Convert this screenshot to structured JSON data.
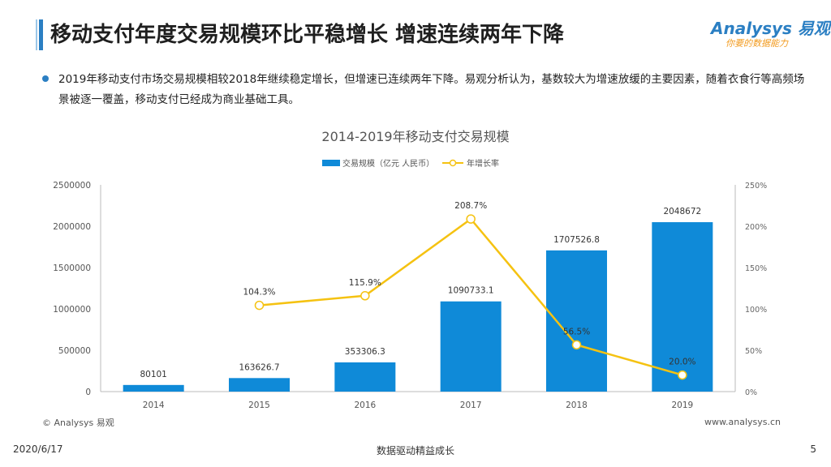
{
  "header": {
    "title": "移动支付年度交易规模环比平稳增长 增速连续两年下降",
    "logo_main": "Analysys 易观",
    "logo_sub": "你要的数据能力"
  },
  "summary": {
    "text": "2019年移动支付市场交易规模相较2018年继续稳定增长，但增速已连续两年下降。易观分析认为，基数较大为增速放缓的主要因素，随着衣食行等高频场景被逐一覆盖，移动支付已经成为商业基础工具。"
  },
  "chart_data": {
    "type": "bar",
    "title": "2014-2019年移动支付交易规模",
    "categories": [
      "2014",
      "2015",
      "2016",
      "2017",
      "2018",
      "2019"
    ],
    "series": [
      {
        "name": "交易规模（亿元 人民币）",
        "type": "bar",
        "axis": "left",
        "values": [
          80101,
          163626.7,
          353306.3,
          1090733.1,
          1707526.8,
          2048672
        ],
        "labels": [
          "80101",
          "163626.7",
          "353306.3",
          "1090733.1",
          "1707526.8",
          "2048672"
        ],
        "color": "#0f8ad8"
      },
      {
        "name": "年增长率",
        "type": "line",
        "axis": "right",
        "values": [
          null,
          104.3,
          115.9,
          208.7,
          56.5,
          20.0
        ],
        "labels": [
          "",
          "104.3%",
          "115.9%",
          "208.7%",
          "56.5%",
          "20.0%"
        ],
        "color": "#f5c211"
      }
    ],
    "y_left": {
      "min": 0,
      "max": 2500000,
      "ticks": [
        "0",
        "500000",
        "1000000",
        "1500000",
        "2000000",
        "2500000"
      ]
    },
    "y_right": {
      "min": 0,
      "max": 250,
      "ticks": [
        "0%",
        "50%",
        "100%",
        "150%",
        "200%",
        "250%"
      ]
    },
    "legend_position": "top-center",
    "grid": false
  },
  "footer": {
    "copyright": "© Analysys 易观",
    "website": "www.analysys.cn",
    "date": "2020/6/17",
    "slogan": "数据驱动精益成长",
    "page": "5"
  }
}
